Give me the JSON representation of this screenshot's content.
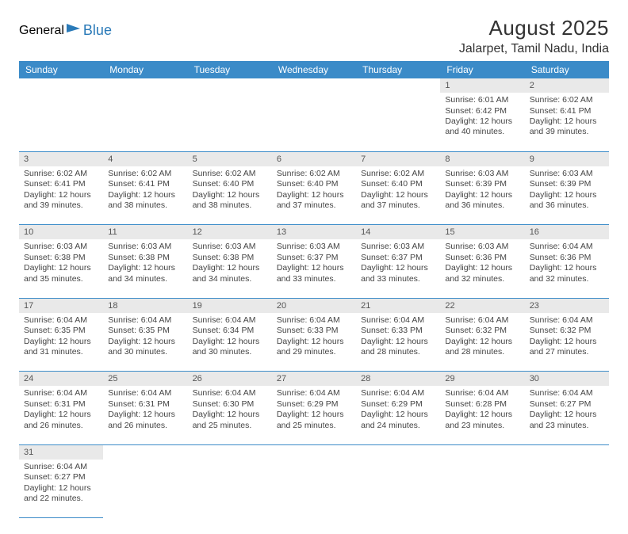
{
  "logo": {
    "text1": "General",
    "text2": "Blue"
  },
  "title": "August 2025",
  "location": "Jalarpet, Tamil Nadu, India",
  "colors": {
    "header_bg": "#3b8bc8",
    "header_text": "#ffffff",
    "daynum_bg": "#e9e9e9",
    "cell_border": "#3b8bc8",
    "text": "#444444",
    "logo_gray": "#4a4a4a",
    "logo_blue": "#2a7ab8"
  },
  "dayHeaders": [
    "Sunday",
    "Monday",
    "Tuesday",
    "Wednesday",
    "Thursday",
    "Friday",
    "Saturday"
  ],
  "weeks": [
    [
      null,
      null,
      null,
      null,
      null,
      {
        "n": "1",
        "sr": "Sunrise: 6:01 AM",
        "ss": "Sunset: 6:42 PM",
        "dl": "Daylight: 12 hours and 40 minutes."
      },
      {
        "n": "2",
        "sr": "Sunrise: 6:02 AM",
        "ss": "Sunset: 6:41 PM",
        "dl": "Daylight: 12 hours and 39 minutes."
      }
    ],
    [
      {
        "n": "3",
        "sr": "Sunrise: 6:02 AM",
        "ss": "Sunset: 6:41 PM",
        "dl": "Daylight: 12 hours and 39 minutes."
      },
      {
        "n": "4",
        "sr": "Sunrise: 6:02 AM",
        "ss": "Sunset: 6:41 PM",
        "dl": "Daylight: 12 hours and 38 minutes."
      },
      {
        "n": "5",
        "sr": "Sunrise: 6:02 AM",
        "ss": "Sunset: 6:40 PM",
        "dl": "Daylight: 12 hours and 38 minutes."
      },
      {
        "n": "6",
        "sr": "Sunrise: 6:02 AM",
        "ss": "Sunset: 6:40 PM",
        "dl": "Daylight: 12 hours and 37 minutes."
      },
      {
        "n": "7",
        "sr": "Sunrise: 6:02 AM",
        "ss": "Sunset: 6:40 PM",
        "dl": "Daylight: 12 hours and 37 minutes."
      },
      {
        "n": "8",
        "sr": "Sunrise: 6:03 AM",
        "ss": "Sunset: 6:39 PM",
        "dl": "Daylight: 12 hours and 36 minutes."
      },
      {
        "n": "9",
        "sr": "Sunrise: 6:03 AM",
        "ss": "Sunset: 6:39 PM",
        "dl": "Daylight: 12 hours and 36 minutes."
      }
    ],
    [
      {
        "n": "10",
        "sr": "Sunrise: 6:03 AM",
        "ss": "Sunset: 6:38 PM",
        "dl": "Daylight: 12 hours and 35 minutes."
      },
      {
        "n": "11",
        "sr": "Sunrise: 6:03 AM",
        "ss": "Sunset: 6:38 PM",
        "dl": "Daylight: 12 hours and 34 minutes."
      },
      {
        "n": "12",
        "sr": "Sunrise: 6:03 AM",
        "ss": "Sunset: 6:38 PM",
        "dl": "Daylight: 12 hours and 34 minutes."
      },
      {
        "n": "13",
        "sr": "Sunrise: 6:03 AM",
        "ss": "Sunset: 6:37 PM",
        "dl": "Daylight: 12 hours and 33 minutes."
      },
      {
        "n": "14",
        "sr": "Sunrise: 6:03 AM",
        "ss": "Sunset: 6:37 PM",
        "dl": "Daylight: 12 hours and 33 minutes."
      },
      {
        "n": "15",
        "sr": "Sunrise: 6:03 AM",
        "ss": "Sunset: 6:36 PM",
        "dl": "Daylight: 12 hours and 32 minutes."
      },
      {
        "n": "16",
        "sr": "Sunrise: 6:04 AM",
        "ss": "Sunset: 6:36 PM",
        "dl": "Daylight: 12 hours and 32 minutes."
      }
    ],
    [
      {
        "n": "17",
        "sr": "Sunrise: 6:04 AM",
        "ss": "Sunset: 6:35 PM",
        "dl": "Daylight: 12 hours and 31 minutes."
      },
      {
        "n": "18",
        "sr": "Sunrise: 6:04 AM",
        "ss": "Sunset: 6:35 PM",
        "dl": "Daylight: 12 hours and 30 minutes."
      },
      {
        "n": "19",
        "sr": "Sunrise: 6:04 AM",
        "ss": "Sunset: 6:34 PM",
        "dl": "Daylight: 12 hours and 30 minutes."
      },
      {
        "n": "20",
        "sr": "Sunrise: 6:04 AM",
        "ss": "Sunset: 6:33 PM",
        "dl": "Daylight: 12 hours and 29 minutes."
      },
      {
        "n": "21",
        "sr": "Sunrise: 6:04 AM",
        "ss": "Sunset: 6:33 PM",
        "dl": "Daylight: 12 hours and 28 minutes."
      },
      {
        "n": "22",
        "sr": "Sunrise: 6:04 AM",
        "ss": "Sunset: 6:32 PM",
        "dl": "Daylight: 12 hours and 28 minutes."
      },
      {
        "n": "23",
        "sr": "Sunrise: 6:04 AM",
        "ss": "Sunset: 6:32 PM",
        "dl": "Daylight: 12 hours and 27 minutes."
      }
    ],
    [
      {
        "n": "24",
        "sr": "Sunrise: 6:04 AM",
        "ss": "Sunset: 6:31 PM",
        "dl": "Daylight: 12 hours and 26 minutes."
      },
      {
        "n": "25",
        "sr": "Sunrise: 6:04 AM",
        "ss": "Sunset: 6:31 PM",
        "dl": "Daylight: 12 hours and 26 minutes."
      },
      {
        "n": "26",
        "sr": "Sunrise: 6:04 AM",
        "ss": "Sunset: 6:30 PM",
        "dl": "Daylight: 12 hours and 25 minutes."
      },
      {
        "n": "27",
        "sr": "Sunrise: 6:04 AM",
        "ss": "Sunset: 6:29 PM",
        "dl": "Daylight: 12 hours and 25 minutes."
      },
      {
        "n": "28",
        "sr": "Sunrise: 6:04 AM",
        "ss": "Sunset: 6:29 PM",
        "dl": "Daylight: 12 hours and 24 minutes."
      },
      {
        "n": "29",
        "sr": "Sunrise: 6:04 AM",
        "ss": "Sunset: 6:28 PM",
        "dl": "Daylight: 12 hours and 23 minutes."
      },
      {
        "n": "30",
        "sr": "Sunrise: 6:04 AM",
        "ss": "Sunset: 6:27 PM",
        "dl": "Daylight: 12 hours and 23 minutes."
      }
    ],
    [
      {
        "n": "31",
        "sr": "Sunrise: 6:04 AM",
        "ss": "Sunset: 6:27 PM",
        "dl": "Daylight: 12 hours and 22 minutes."
      },
      null,
      null,
      null,
      null,
      null,
      null
    ]
  ]
}
